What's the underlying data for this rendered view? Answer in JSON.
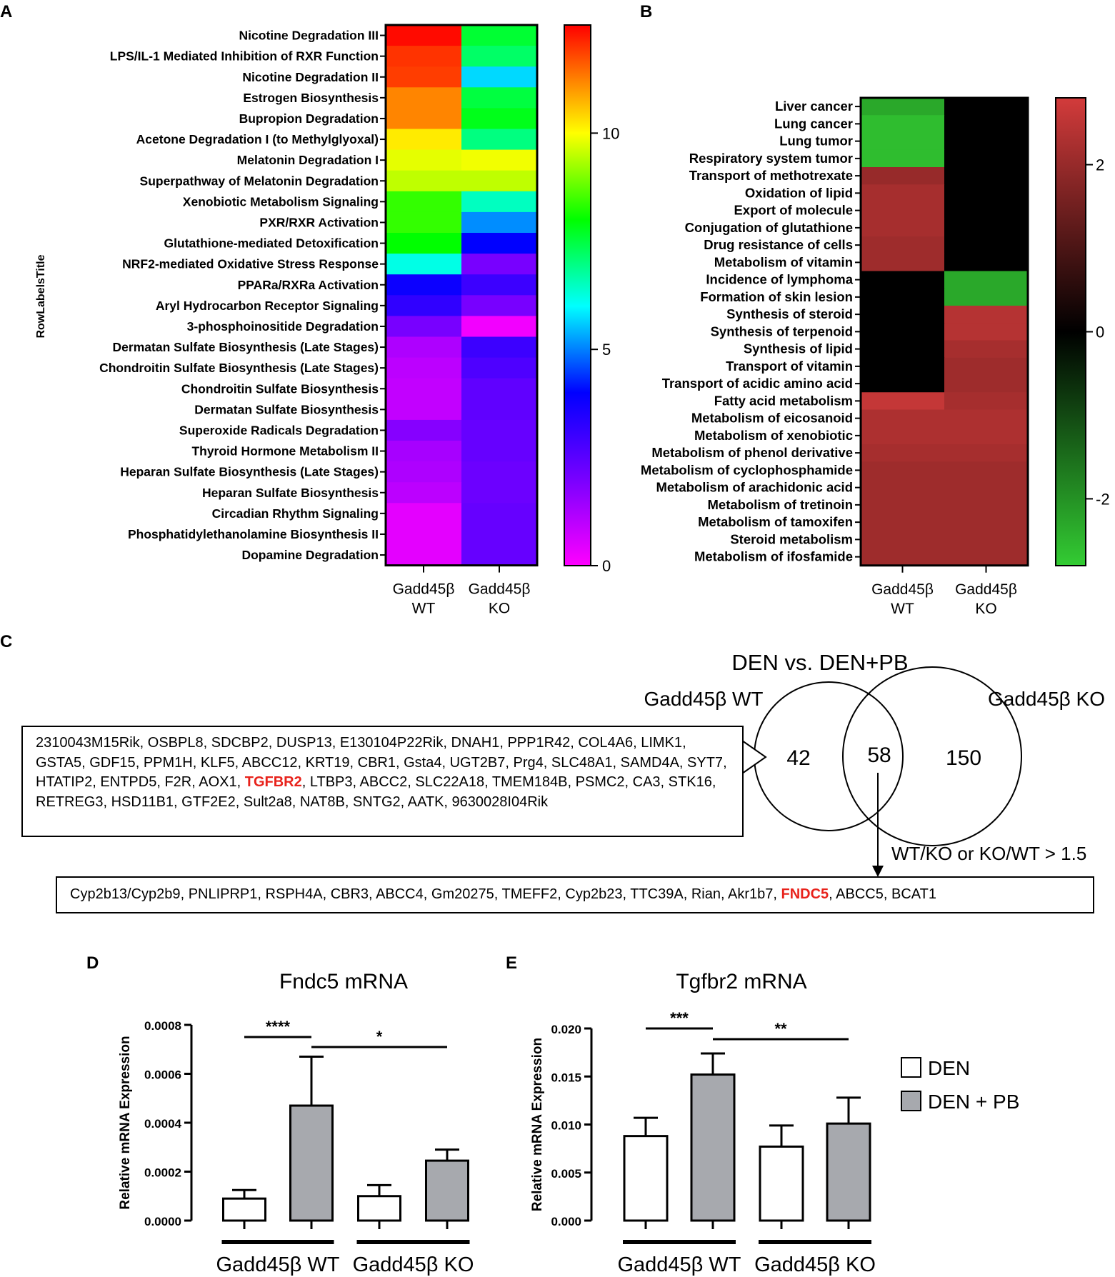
{
  "panels": {
    "A": "A",
    "B": "B",
    "C": "C",
    "D": "D",
    "E": "E"
  },
  "chart_data": [
    {
      "type": "heatmap",
      "panel": "A",
      "ylabel": "RowLabelsTitle",
      "columns": [
        "Gadd45β WT",
        "Gadd45β KO"
      ],
      "rows": [
        "Nicotine Degradation III",
        "LPS/IL-1 Mediated Inhibition of RXR Function",
        "Nicotine Degradation II",
        "Estrogen Biosynthesis",
        "Bupropion Degradation",
        "Acetone Degradation I (to Methylglyoxal)",
        "Melatonin Degradation I",
        "Superpathway of Melatonin Degradation",
        "Xenobiotic Metabolism Signaling",
        "PXR/RXR Activation",
        "Glutathione-mediated Detoxification",
        "NRF2-mediated Oxidative Stress Response",
        "PPARa/RXRa Activation",
        "Aryl Hydrocarbon Receptor Signaling",
        "3-phosphoinositide Degradation",
        "Dermatan Sulfate Biosynthesis (Late Stages)",
        "Chondroitin Sulfate Biosynthesis (Late Stages)",
        "Chondroitin Sulfate Biosynthesis",
        "Dermatan Sulfate Biosynthesis",
        "Superoxide Radicals Degradation",
        "Thyroid Hormone Metabolism II",
        "Heparan Sulfate Biosynthesis (Late Stages)",
        "Heparan Sulfate Biosynthesis",
        "Circadian Rhythm Signaling",
        "Phosphatidylethanolamine Biosynthesis II",
        "Dopamine Degradation"
      ],
      "values": [
        [
          12.4,
          7.6
        ],
        [
          12.0,
          7.2
        ],
        [
          11.9,
          5.7
        ],
        [
          11.2,
          7.5
        ],
        [
          11.2,
          7.8
        ],
        [
          10.2,
          7.0
        ],
        [
          9.8,
          9.9
        ],
        [
          9.5,
          9.5
        ],
        [
          8.4,
          6.5
        ],
        [
          8.4,
          5.1
        ],
        [
          8.0,
          4.0
        ],
        [
          6.2,
          2.0
        ],
        [
          3.8,
          3.0
        ],
        [
          3.2,
          2.0
        ],
        [
          2.0,
          0.2
        ],
        [
          1.2,
          3.0
        ],
        [
          1.0,
          2.7
        ],
        [
          0.9,
          2.4
        ],
        [
          0.9,
          2.4
        ],
        [
          1.8,
          2.3
        ],
        [
          1.3,
          2.3
        ],
        [
          1.2,
          2.2
        ],
        [
          1.0,
          2.2
        ],
        [
          0.4,
          2.3
        ],
        [
          0.4,
          2.3
        ],
        [
          0.4,
          2.3
        ]
      ],
      "scale": {
        "min": 0,
        "max": 12.5,
        "ticks": [
          0,
          5,
          10
        ]
      }
    },
    {
      "type": "heatmap",
      "panel": "B",
      "columns": [
        "Gadd45β WT",
        "Gadd45β KO"
      ],
      "rows": [
        "Liver cancer",
        "Lung cancer",
        "Lung tumor",
        "Respiratory system tumor",
        "Transport of methotrexate",
        "Oxidation of lipid",
        "Export of molecule",
        "Conjugation of glutathione",
        "Drug resistance of cells",
        "Metabolism of vitamin",
        "Incidence of lymphoma",
        "Formation of skin lesion",
        "Synthesis of steroid",
        "Synthesis of terpenoid",
        "Synthesis of lipid",
        "Transport of vitamin",
        "Transport of acidic amino acid",
        "Fatty acid metabolism",
        "Metabolism of eicosanoid",
        "Metabolism of xenobiotic",
        "Metabolism of phenol derivative",
        "Metabolism of cyclophosphamide",
        "Metabolism of arachidonic acid",
        "Metabolism of tretinoin",
        "Metabolism of tamoxifen",
        "Steroid metabolism",
        "Metabolism of ifosfamide"
      ],
      "values": [
        [
          -2.3,
          0
        ],
        [
          -2.6,
          0
        ],
        [
          -2.6,
          0
        ],
        [
          -2.6,
          0
        ],
        [
          2.0,
          0
        ],
        [
          2.2,
          0
        ],
        [
          2.2,
          0
        ],
        [
          2.2,
          0
        ],
        [
          2.1,
          0
        ],
        [
          2.1,
          0
        ],
        [
          0,
          -2.3
        ],
        [
          0,
          -2.3
        ],
        [
          0,
          2.4
        ],
        [
          0,
          2.4
        ],
        [
          0,
          2.2
        ],
        [
          0,
          2.1
        ],
        [
          0,
          2.1
        ],
        [
          2.6,
          2.2
        ],
        [
          2.3,
          2.3
        ],
        [
          2.3,
          2.3
        ],
        [
          2.2,
          2.2
        ],
        [
          2.1,
          2.1
        ],
        [
          2.1,
          2.1
        ],
        [
          2.1,
          2.1
        ],
        [
          2.1,
          2.1
        ],
        [
          2.1,
          2.1
        ],
        [
          2.1,
          2.1
        ]
      ],
      "scale": {
        "min": -2.8,
        "max": 2.8,
        "ticks": [
          2,
          0,
          -2
        ],
        "tick_labels": [
          "2",
          "0",
          "-2"
        ]
      }
    },
    {
      "type": "bar",
      "panel": "D",
      "title": "Fndc5 mRNA",
      "ylabel": "Relative mRNA Expression",
      "ylim": [
        0,
        0.0008
      ],
      "yticks": [
        "0.0000",
        "0.0002",
        "0.0004",
        "0.0006",
        "0.0008"
      ],
      "groups": [
        "Gadd45β WT",
        "Gadd45β KO"
      ],
      "series": [
        {
          "name": "DEN",
          "values": [
            9e-05,
            0.0001
          ],
          "errors": [
            3.5e-05,
            4.5e-05
          ]
        },
        {
          "name": "DEN + PB",
          "values": [
            0.00047,
            0.000245
          ],
          "errors": [
            0.0002,
            4.5e-05
          ]
        }
      ],
      "significance": [
        {
          "label": "****",
          "between": "WT DEN vs WT DEN+PB"
        },
        {
          "label": "*",
          "between": "WT DEN+PB vs KO DEN+PB"
        }
      ]
    },
    {
      "type": "bar",
      "panel": "E",
      "title": "Tgfbr2 mRNA",
      "ylabel": "Relative mRNA Expression",
      "ylim": [
        0,
        0.02
      ],
      "yticks": [
        "0.000",
        "0.005",
        "0.010",
        "0.015",
        "0.020"
      ],
      "groups": [
        "Gadd45β WT",
        "Gadd45β KO"
      ],
      "series": [
        {
          "name": "DEN",
          "values": [
            0.0088,
            0.0077
          ],
          "errors": [
            0.0019,
            0.0022
          ]
        },
        {
          "name": "DEN + PB",
          "values": [
            0.0152,
            0.0101
          ],
          "errors": [
            0.0022,
            0.0027
          ]
        }
      ],
      "significance": [
        {
          "label": "***",
          "between": "WT DEN vs WT DEN+PB"
        },
        {
          "label": "**",
          "between": "WT DEN+PB vs KO DEN+PB"
        }
      ],
      "legend": [
        "DEN",
        "DEN + PB"
      ]
    }
  ],
  "venn": {
    "title": "DEN vs. DEN+PB",
    "left_label": "Gadd45β WT",
    "right_label": "Gadd45β KO",
    "left_only": "42",
    "overlap": "58",
    "right_only": "150",
    "criterion": "WT/KO or KO/WT > 1.5"
  },
  "gene_box_wt": {
    "genes": [
      "2310043M15Rik",
      "OSBPL8",
      "SDCBP2",
      "DUSP13",
      "E130104P22Rik",
      "DNAH1",
      "PPP1R42",
      "COL4A6",
      "LIMK1",
      "GSTA5",
      "GDF15",
      "PPM1H",
      "KLF5",
      "ABCC12",
      "KRT19",
      "CBR1",
      "Gsta4",
      "UGT2B7",
      "Prg4",
      "SLC48A1",
      "SAMD4A",
      "SYT7",
      "HTATIP2",
      "ENTPD5",
      "F2R",
      "AOX1",
      "TGFBR2",
      "LTBP3",
      "ABCC2",
      "SLC22A18",
      "TMEM184B",
      "PSMC2",
      "CA3",
      "STK16",
      "RETREG3",
      "HSD11B1",
      "GTF2E2",
      "Sult2a8",
      "NAT8B",
      "SNTG2",
      "AATK",
      "9630028I04Rik"
    ],
    "highlight": "TGFBR2"
  },
  "gene_box_overlap": {
    "genes": [
      "Cyp2b13/Cyp2b9",
      "PNLIPRP1",
      "RSPH4A",
      "CBR3",
      "ABCC4",
      "Gm20275",
      "TMEFF2",
      "Cyp2b23",
      "TTC39A",
      "Rian",
      "Akr1b7",
      "FNDC5",
      "ABCC5",
      "BCAT1"
    ],
    "highlight": "FNDC5"
  },
  "colors": {
    "bar_den": "#ffffff",
    "bar_denpb": "#a7a9ae",
    "highlight_gene": "#e8221b"
  }
}
